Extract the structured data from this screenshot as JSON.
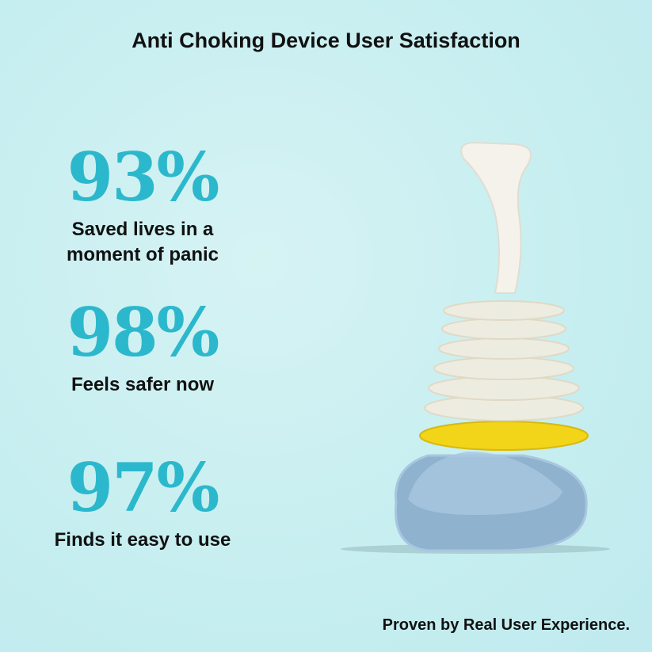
{
  "title": "Anti Choking Device User Satisfaction",
  "stats": [
    {
      "value": "93%",
      "label_line1": "Saved lives in a",
      "label_line2": "moment of panic"
    },
    {
      "value": "98%",
      "label_line1": "Feels safer now",
      "label_line2": ""
    },
    {
      "value": "97%",
      "label_line1": "Finds it easy to use",
      "label_line2": ""
    }
  ],
  "footer": "Proven by Real User Experience.",
  "colors": {
    "accent": "#2cb8cc",
    "background": "#c6eef0",
    "ring": "#f3d51c"
  }
}
